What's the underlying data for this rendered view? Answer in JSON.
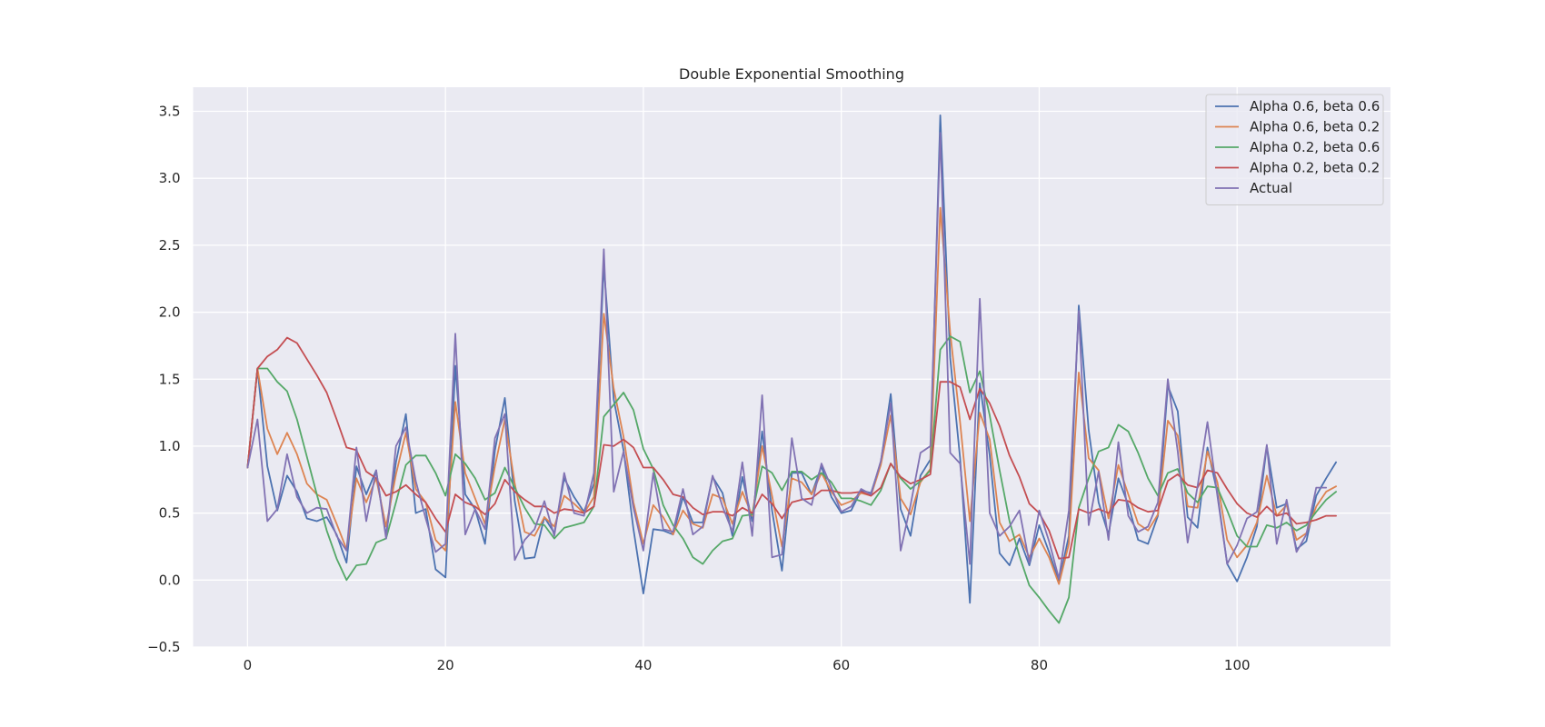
{
  "chart_data": {
    "type": "line",
    "title": "Double Exponential Smoothing",
    "xlabel": "",
    "ylabel": "",
    "xlim": [
      -5.5,
      115.5
    ],
    "ylim": [
      -0.5,
      3.68
    ],
    "xticks": [
      0,
      20,
      40,
      60,
      80,
      100
    ],
    "yticks": [
      -0.5,
      0.0,
      0.5,
      1.0,
      1.5,
      2.0,
      2.5,
      3.0,
      3.5
    ],
    "grid": true,
    "legend_position": "top-right",
    "x": [
      0,
      1,
      2,
      3,
      4,
      5,
      6,
      7,
      8,
      9,
      10,
      11,
      12,
      13,
      14,
      15,
      16,
      17,
      18,
      19,
      20,
      21,
      22,
      23,
      24,
      25,
      26,
      27,
      28,
      29,
      30,
      31,
      32,
      33,
      34,
      35,
      36,
      37,
      38,
      39,
      40,
      41,
      42,
      43,
      44,
      45,
      46,
      47,
      48,
      49,
      50,
      51,
      52,
      53,
      54,
      55,
      56,
      57,
      58,
      59,
      60,
      61,
      62,
      63,
      64,
      65,
      66,
      67,
      68,
      69,
      70,
      71,
      72,
      73,
      74,
      75,
      76,
      77,
      78,
      79,
      80,
      81,
      82,
      83,
      84,
      85,
      86,
      87,
      88,
      89,
      90,
      91,
      92,
      93,
      94,
      95,
      96,
      97,
      98,
      99,
      100,
      101,
      102,
      103,
      104,
      105,
      106,
      107,
      108,
      109,
      110
    ],
    "series": [
      {
        "name": "Alpha 0.6, beta 0.6",
        "color": "#4c72b0",
        "values": [
          0.84,
          1.58,
          0.85,
          0.52,
          0.78,
          0.66,
          0.46,
          0.44,
          0.47,
          0.34,
          0.13,
          0.85,
          0.64,
          0.82,
          0.33,
          0.88,
          1.24,
          0.5,
          0.53,
          0.08,
          0.02,
          1.6,
          0.64,
          0.53,
          0.27,
          0.97,
          1.36,
          0.59,
          0.16,
          0.17,
          0.47,
          0.35,
          0.76,
          0.62,
          0.51,
          0.72,
          2.35,
          1.35,
          0.97,
          0.38,
          -0.1,
          0.38,
          0.37,
          0.34,
          0.62,
          0.43,
          0.43,
          0.77,
          0.65,
          0.33,
          0.77,
          0.44,
          1.11,
          0.52,
          0.07,
          0.8,
          0.8,
          0.64,
          0.85,
          0.62,
          0.5,
          0.52,
          0.67,
          0.65,
          0.88,
          1.39,
          0.53,
          0.33,
          0.78,
          0.9,
          3.47,
          1.66,
          0.91,
          -0.17,
          1.47,
          0.93,
          0.2,
          0.11,
          0.31,
          0.11,
          0.41,
          0.21,
          -0.01,
          0.33,
          2.05,
          1.12,
          0.58,
          0.34,
          0.76,
          0.56,
          0.3,
          0.27,
          0.48,
          1.45,
          1.26,
          0.47,
          0.39,
          0.99,
          0.65,
          0.12,
          -0.01,
          0.17,
          0.4,
          1.0,
          0.54,
          0.57,
          0.23,
          0.29,
          0.63,
          0.76,
          0.88
        ]
      },
      {
        "name": "Alpha 0.6, beta 0.2",
        "color": "#dd8452",
        "values": [
          0.84,
          1.58,
          1.13,
          0.94,
          1.1,
          0.94,
          0.72,
          0.64,
          0.6,
          0.42,
          0.23,
          0.76,
          0.58,
          0.76,
          0.4,
          0.79,
          1.1,
          0.68,
          0.58,
          0.3,
          0.22,
          1.33,
          0.8,
          0.61,
          0.42,
          0.85,
          1.2,
          0.72,
          0.36,
          0.33,
          0.47,
          0.4,
          0.63,
          0.57,
          0.5,
          0.62,
          1.99,
          1.43,
          1.07,
          0.58,
          0.27,
          0.56,
          0.47,
          0.34,
          0.52,
          0.42,
          0.39,
          0.64,
          0.61,
          0.42,
          0.66,
          0.48,
          1.0,
          0.63,
          0.25,
          0.76,
          0.73,
          0.64,
          0.8,
          0.66,
          0.56,
          0.59,
          0.65,
          0.63,
          0.86,
          1.23,
          0.61,
          0.49,
          0.73,
          0.83,
          2.78,
          1.85,
          1.18,
          0.44,
          1.25,
          1.05,
          0.43,
          0.29,
          0.34,
          0.17,
          0.31,
          0.17,
          -0.03,
          0.27,
          1.55,
          0.91,
          0.82,
          0.46,
          0.86,
          0.64,
          0.42,
          0.37,
          0.49,
          1.19,
          1.08,
          0.55,
          0.54,
          0.96,
          0.73,
          0.3,
          0.17,
          0.26,
          0.43,
          0.78,
          0.48,
          0.56,
          0.3,
          0.35,
          0.55,
          0.66,
          0.7
        ]
      },
      {
        "name": "Alpha 0.2, beta 0.6",
        "color": "#55a868",
        "values": [
          0.84,
          1.58,
          1.58,
          1.48,
          1.41,
          1.2,
          0.92,
          0.64,
          0.37,
          0.16,
          0.0,
          0.11,
          0.12,
          0.28,
          0.31,
          0.58,
          0.86,
          0.93,
          0.93,
          0.8,
          0.63,
          0.94,
          0.87,
          0.76,
          0.6,
          0.65,
          0.84,
          0.69,
          0.54,
          0.42,
          0.41,
          0.31,
          0.39,
          0.41,
          0.43,
          0.55,
          1.22,
          1.31,
          1.4,
          1.27,
          0.98,
          0.83,
          0.56,
          0.41,
          0.31,
          0.17,
          0.12,
          0.22,
          0.29,
          0.31,
          0.48,
          0.49,
          0.85,
          0.8,
          0.67,
          0.81,
          0.81,
          0.75,
          0.8,
          0.73,
          0.61,
          0.61,
          0.59,
          0.56,
          0.67,
          0.87,
          0.76,
          0.68,
          0.74,
          0.82,
          1.72,
          1.82,
          1.78,
          1.4,
          1.56,
          1.23,
          0.82,
          0.44,
          0.18,
          -0.04,
          -0.13,
          -0.23,
          -0.32,
          -0.13,
          0.54,
          0.76,
          0.96,
          0.99,
          1.16,
          1.11,
          0.95,
          0.76,
          0.63,
          0.8,
          0.83,
          0.65,
          0.58,
          0.7,
          0.69,
          0.52,
          0.33,
          0.25,
          0.25,
          0.41,
          0.39,
          0.43,
          0.37,
          0.41,
          0.51,
          0.6,
          0.66
        ]
      },
      {
        "name": "Alpha 0.2, beta 0.2",
        "color": "#c44e52",
        "values": [
          0.84,
          1.58,
          1.67,
          1.72,
          1.81,
          1.77,
          1.65,
          1.53,
          1.4,
          1.2,
          0.99,
          0.97,
          0.81,
          0.76,
          0.63,
          0.66,
          0.71,
          0.64,
          0.58,
          0.46,
          0.36,
          0.64,
          0.58,
          0.55,
          0.49,
          0.57,
          0.75,
          0.66,
          0.6,
          0.55,
          0.55,
          0.5,
          0.53,
          0.52,
          0.5,
          0.55,
          1.01,
          1.0,
          1.05,
          0.99,
          0.84,
          0.84,
          0.75,
          0.64,
          0.62,
          0.54,
          0.49,
          0.51,
          0.51,
          0.48,
          0.54,
          0.5,
          0.64,
          0.57,
          0.46,
          0.58,
          0.6,
          0.61,
          0.67,
          0.67,
          0.65,
          0.65,
          0.66,
          0.63,
          0.69,
          0.87,
          0.77,
          0.72,
          0.75,
          0.79,
          1.48,
          1.48,
          1.44,
          1.2,
          1.43,
          1.32,
          1.15,
          0.93,
          0.77,
          0.57,
          0.5,
          0.37,
          0.16,
          0.17,
          0.53,
          0.5,
          0.53,
          0.5,
          0.6,
          0.59,
          0.54,
          0.51,
          0.52,
          0.74,
          0.79,
          0.71,
          0.69,
          0.82,
          0.8,
          0.68,
          0.57,
          0.5,
          0.47,
          0.55,
          0.48,
          0.5,
          0.42,
          0.43,
          0.45,
          0.48,
          0.48
        ]
      },
      {
        "name": "Actual",
        "color": "#8172b3",
        "values": [
          0.84,
          1.2,
          0.44,
          0.53,
          0.94,
          0.62,
          0.5,
          0.54,
          0.53,
          0.33,
          0.22,
          0.99,
          0.44,
          0.82,
          0.31,
          1.0,
          1.14,
          0.74,
          0.46,
          0.21,
          0.27,
          1.84,
          0.34,
          0.53,
          0.38,
          1.06,
          1.24,
          0.15,
          0.3,
          0.38,
          0.59,
          0.33,
          0.8,
          0.5,
          0.48,
          0.8,
          2.47,
          0.66,
          0.96,
          0.54,
          0.22,
          0.8,
          0.38,
          0.36,
          0.68,
          0.34,
          0.4,
          0.78,
          0.55,
          0.36,
          0.88,
          0.33,
          1.38,
          0.17,
          0.19,
          1.06,
          0.61,
          0.56,
          0.87,
          0.69,
          0.51,
          0.55,
          0.68,
          0.64,
          0.89,
          1.32,
          0.22,
          0.56,
          0.95,
          1.0,
          3.34,
          0.95,
          0.87,
          0.12,
          2.1,
          0.5,
          0.33,
          0.4,
          0.52,
          0.13,
          0.52,
          0.29,
          0.01,
          0.52,
          2.01,
          0.41,
          0.81,
          0.3,
          1.03,
          0.48,
          0.36,
          0.4,
          0.58,
          1.5,
          0.96,
          0.28,
          0.7,
          1.18,
          0.63,
          0.12,
          0.26,
          0.46,
          0.51,
          1.01,
          0.27,
          0.6,
          0.21,
          0.34,
          0.69,
          0.69,
          null
        ]
      }
    ]
  }
}
